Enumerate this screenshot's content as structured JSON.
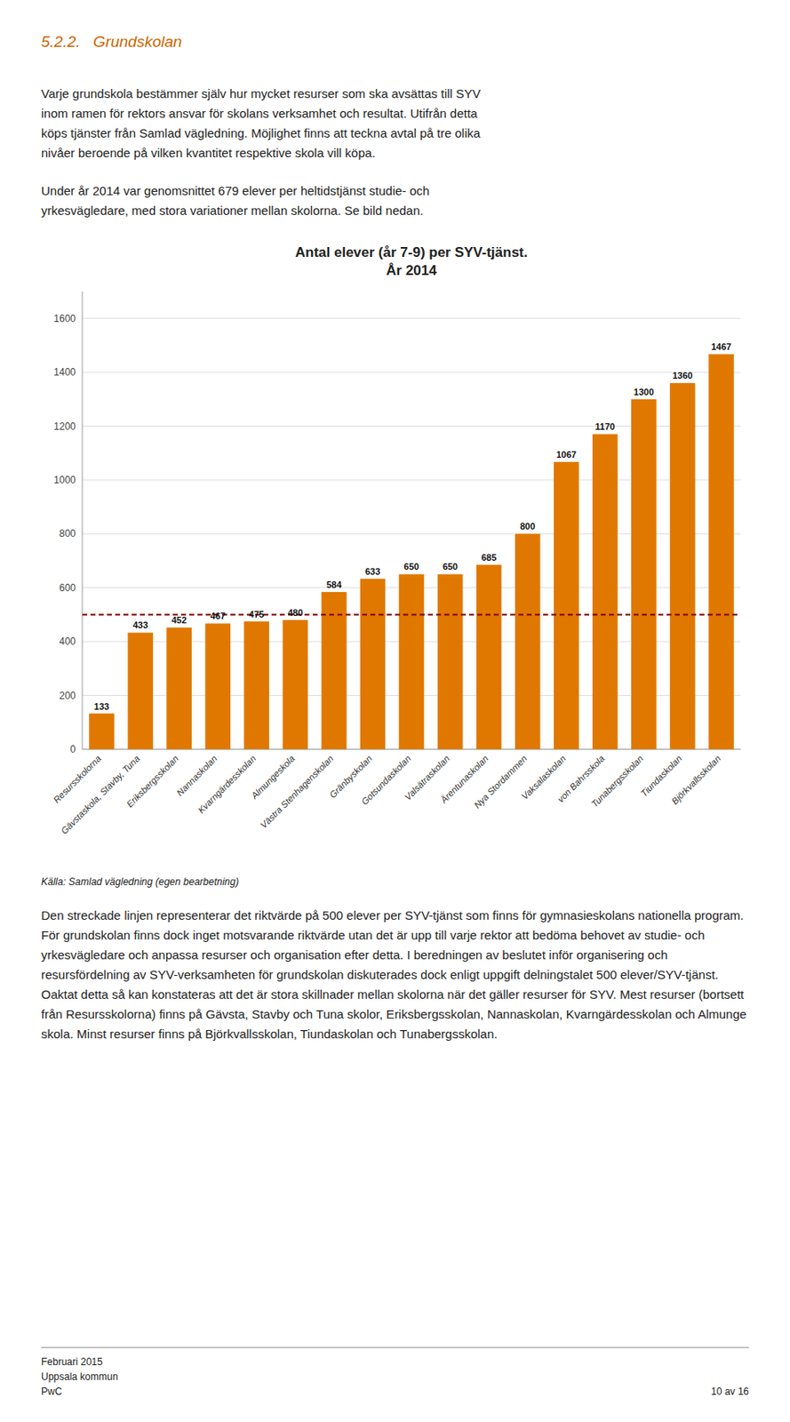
{
  "heading": "5.2.2.\tGrundskolan",
  "heading_color": "#CC6600",
  "paragraphs_before": [
    "Varje grundskola bestämmer själv hur mycket resurser som ska avsättas till SYV\ninom ramen för rektors ansvar för skolans verksamhet och resultat. Utifrån detta\nköps tjänster från Samlad vägledning. Möjlighet finns att teckna avtal på tre olika\nnivåer beroende på vilken kvantitet respektive skola vill köpa.",
    "Under år 2014 var genomsnittet 679 elever per heltidstjänst studie- och\nyrkesvägledare, med stora variationer mellan skolorna. Se bild nedan."
  ],
  "source": "Källa: Samlad vägledning (egen bearbetning)",
  "paragraphs_after": [
    "Den streckade linjen representerar det riktvärde på 500 elever per SYV-tjänst som finns för gymnasieskolans nationella program. För grundskolan finns dock inget motsvarande riktvärde utan det är upp till varje rektor att bedöma behovet av studie- och yrkesvägledare och anpassa resurser och organisation efter detta. I beredningen av beslutet inför organisering och resursfördelning av SYV-verksamheten för grundskolan diskuterades dock enligt uppgift delningstalet 500 elever/SYV-tjänst. Oaktat detta så kan konstateras att det är stora skillnader mellan skolorna när det gäller resurser för SYV. Mest resurser (bortsett från Resursskolorna) finns på Gävsta, Stavby och Tuna skolor, Eriksbergsskolan, Nannaskolan, Kvarngärdesskolan och Almunge skola. Minst resurser finns på Björkvallsskolan, Tiundaskolan och Tunabergsskolan."
  ],
  "footer_left": "Februari 2015\nUppsala kommun\nPwC",
  "footer_right": "10 av 16",
  "chart_data": {
    "type": "bar",
    "title": "Antal elever (år 7-9) per SYV-tjänst.",
    "subtitle": "År 2014",
    "categories": [
      "Resursskolorna",
      "Gävstaskola, Stavby, Tuna",
      "Eriksbergsskolan",
      "Nannaskolan",
      "Kvarngärdesskolan",
      "Almungeskola",
      "Västra Stenhagenskolan",
      "Gränbyskolan",
      "Gotsundaskolan",
      "Valsätraskolan",
      "Ärentunaskolan",
      "Nya Stordammen",
      "Vaksalaskolan",
      "von Bahrsskola",
      "Tunabergsskolan",
      "Tiundaskolan",
      "Björkvallsskolan"
    ],
    "values": [
      133,
      433,
      452,
      467,
      475,
      480,
      584,
      633,
      650,
      650,
      685,
      800,
      1067,
      1170,
      1300,
      1360,
      1467
    ],
    "color": "#E07800",
    "data_labels": true,
    "reference_line": {
      "value": 500,
      "color": "#800000",
      "line_style": "dashed"
    },
    "ylim": [
      0,
      1700
    ],
    "yticks": [
      0,
      200,
      400,
      600,
      800,
      1000,
      1200,
      1400,
      1600
    ],
    "grid": true
  }
}
